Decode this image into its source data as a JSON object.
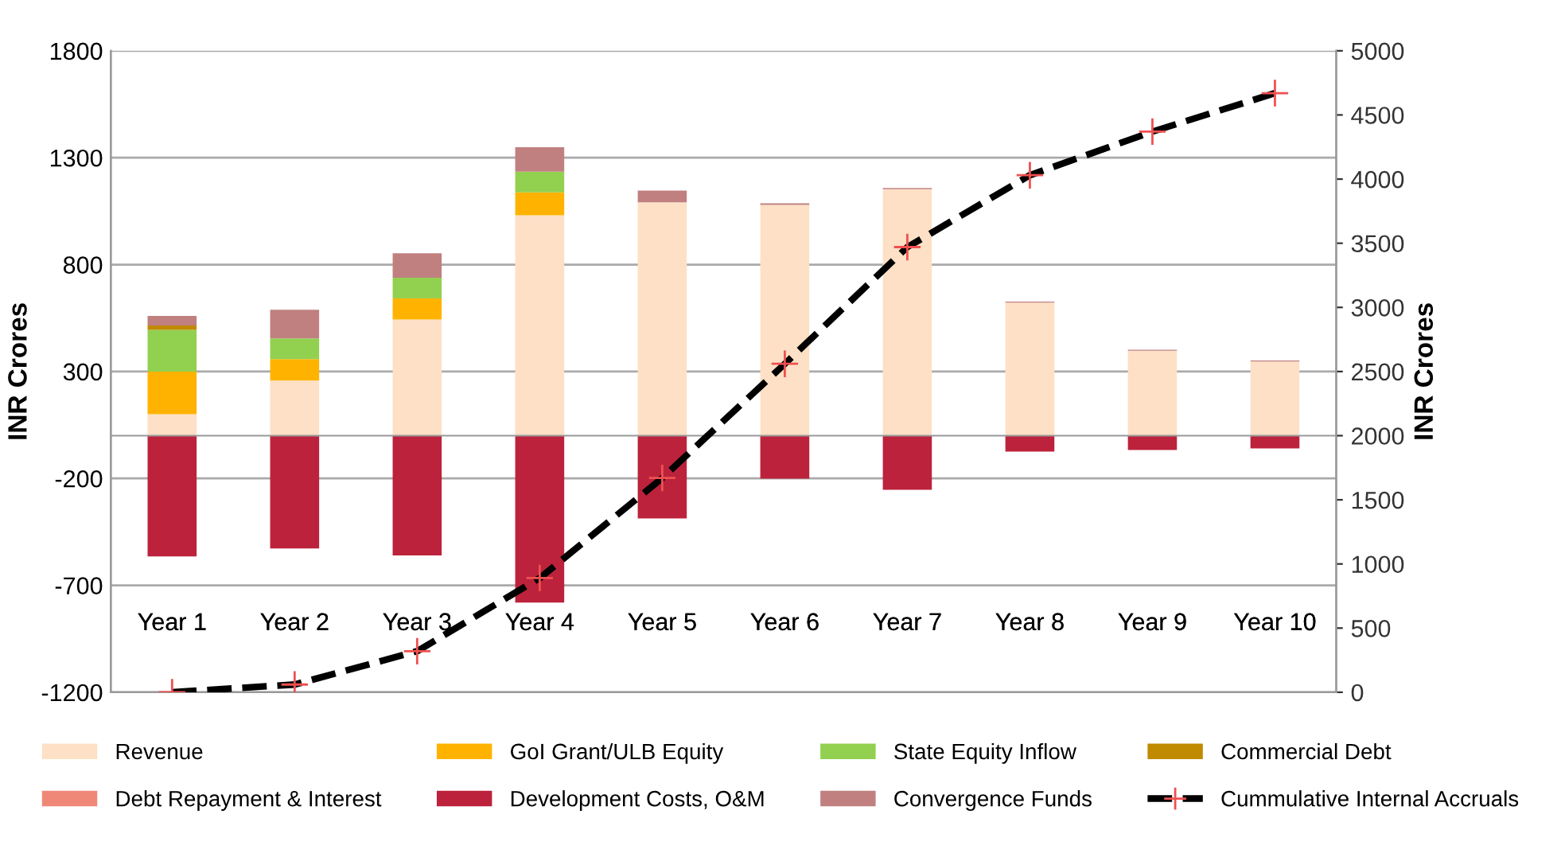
{
  "chart_data": {
    "type": "bar",
    "stacked": true,
    "ylabel": "INR Crores",
    "y2label": "INR Crores",
    "categories": [
      "Year 1",
      "Year 2",
      "Year 3",
      "Year 4",
      "Year 5",
      "Year 6",
      "Year 7",
      "Year 8",
      "Year 9",
      "Year 10"
    ],
    "series": [
      {
        "name": "Revenue",
        "color": "#fde0c5",
        "values": [
          100,
          258,
          543,
          1031,
          1091,
          1079,
          1153,
          622,
          397,
          347
        ]
      },
      {
        "name": "GoI Grant/ULB Equity",
        "color": "#ffb300",
        "values": [
          200,
          100,
          99,
          107,
          null,
          null,
          null,
          null,
          null,
          null
        ]
      },
      {
        "name": "State Equity Inflow",
        "color": "#92d050",
        "values": [
          195,
          97,
          97,
          97,
          null,
          null,
          null,
          null,
          null,
          null
        ]
      },
      {
        "name": "Commercial Debt",
        "color": "#c08a00",
        "values": [
          20,
          null,
          null,
          null,
          null,
          null,
          null,
          null,
          null,
          null
        ]
      },
      {
        "name": "Debt Repayment & Interest",
        "color": "#f08878",
        "values": [
          null,
          null,
          null,
          null,
          null,
          null,
          null,
          null,
          null,
          null
        ]
      },
      {
        "name": "Development Costs, O&M",
        "color": "#bc223c",
        "values": [
          -565,
          -528,
          -560,
          -781,
          -387,
          -201,
          -253,
          -74,
          -67,
          -60
        ]
      },
      {
        "name": "Convergence Funds",
        "color": "#c08080",
        "values": [
          45,
          134,
          114,
          114,
          55,
          8,
          5,
          5,
          5,
          5
        ]
      },
      {
        "name": "Cummulative Internal Accruals",
        "type": "line",
        "axis": "y2",
        "color": "#000000",
        "marker": "cross",
        "line_style": "dashed",
        "values": [
          0,
          60,
          320,
          890,
          1670,
          2560,
          3470,
          4030,
          4370,
          4670
        ]
      }
    ],
    "ylim": [
      -1200,
      1800
    ],
    "yticks": [
      -1200,
      -700,
      -200,
      300,
      800,
      1300,
      1800
    ],
    "y2lim": [
      0,
      5000
    ],
    "y2ticks": [
      0,
      500,
      1000,
      1500,
      2000,
      2500,
      3000,
      3500,
      4000,
      4500,
      5000
    ],
    "grid": "y",
    "legend": "bottom"
  }
}
